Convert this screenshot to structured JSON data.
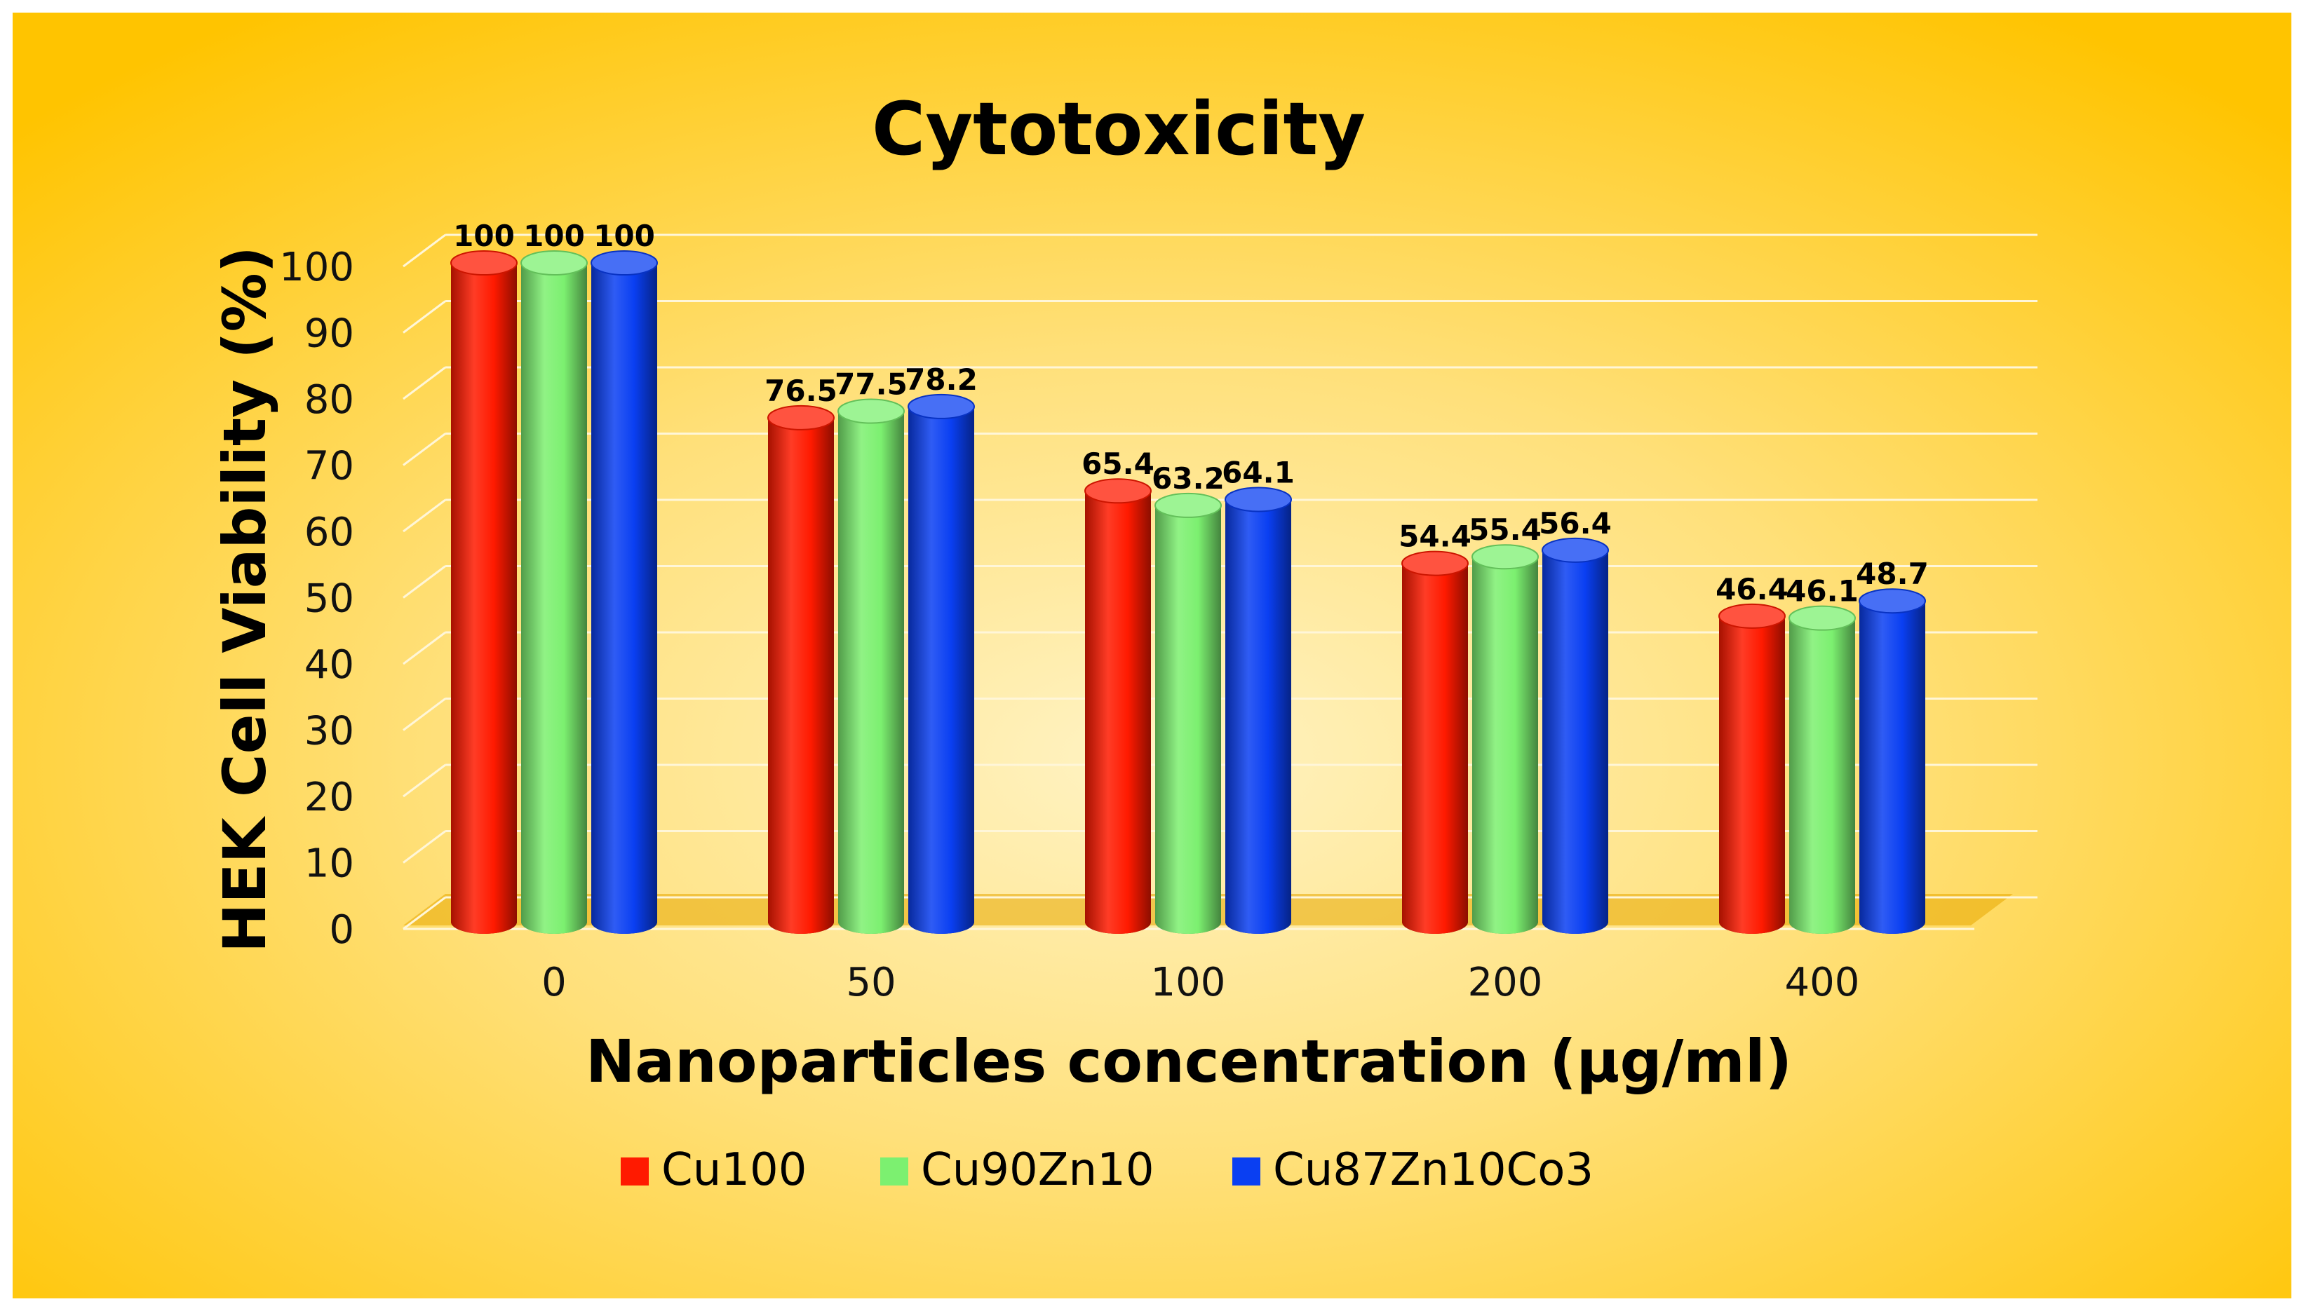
{
  "chart_data": {
    "type": "bar",
    "style": "3d-cylinder",
    "title": "Cytotoxicity",
    "xlabel": "Nanoparticles concentration (µg/ml)",
    "ylabel": "HEK Cell Viability (%)",
    "categories": [
      "0",
      "50",
      "100",
      "200",
      "400"
    ],
    "ylim": [
      0,
      100
    ],
    "yticks": [
      "0",
      "10",
      "20",
      "30",
      "40",
      "50",
      "60",
      "70",
      "80",
      "90",
      "100"
    ],
    "grid": true,
    "legend_position": "bottom",
    "series": [
      {
        "name": "Cu100",
        "color": "#ff1a00",
        "values": [
          100,
          76.5,
          65.4,
          54.4,
          46.4
        ],
        "labels": [
          "100",
          "76.5",
          "65.4",
          "54.4",
          "46.4"
        ]
      },
      {
        "name": "Cu90Zn10",
        "color": "#7cf070",
        "values": [
          100,
          77.5,
          63.2,
          55.4,
          46.1
        ],
        "labels": [
          "100",
          "77.5",
          "63.2",
          "55.4",
          "46.1"
        ]
      },
      {
        "name": "Cu87Zn10Co3",
        "color": "#0a3ff2",
        "values": [
          100,
          78.2,
          64.1,
          56.4,
          48.7
        ],
        "labels": [
          "100",
          "78.2",
          "64.1",
          "56.4",
          "48.7"
        ]
      }
    ]
  },
  "colors": {
    "background_center": "#fff3c4",
    "background_edge": "#ffc400",
    "gridline": "#fff6d8"
  }
}
